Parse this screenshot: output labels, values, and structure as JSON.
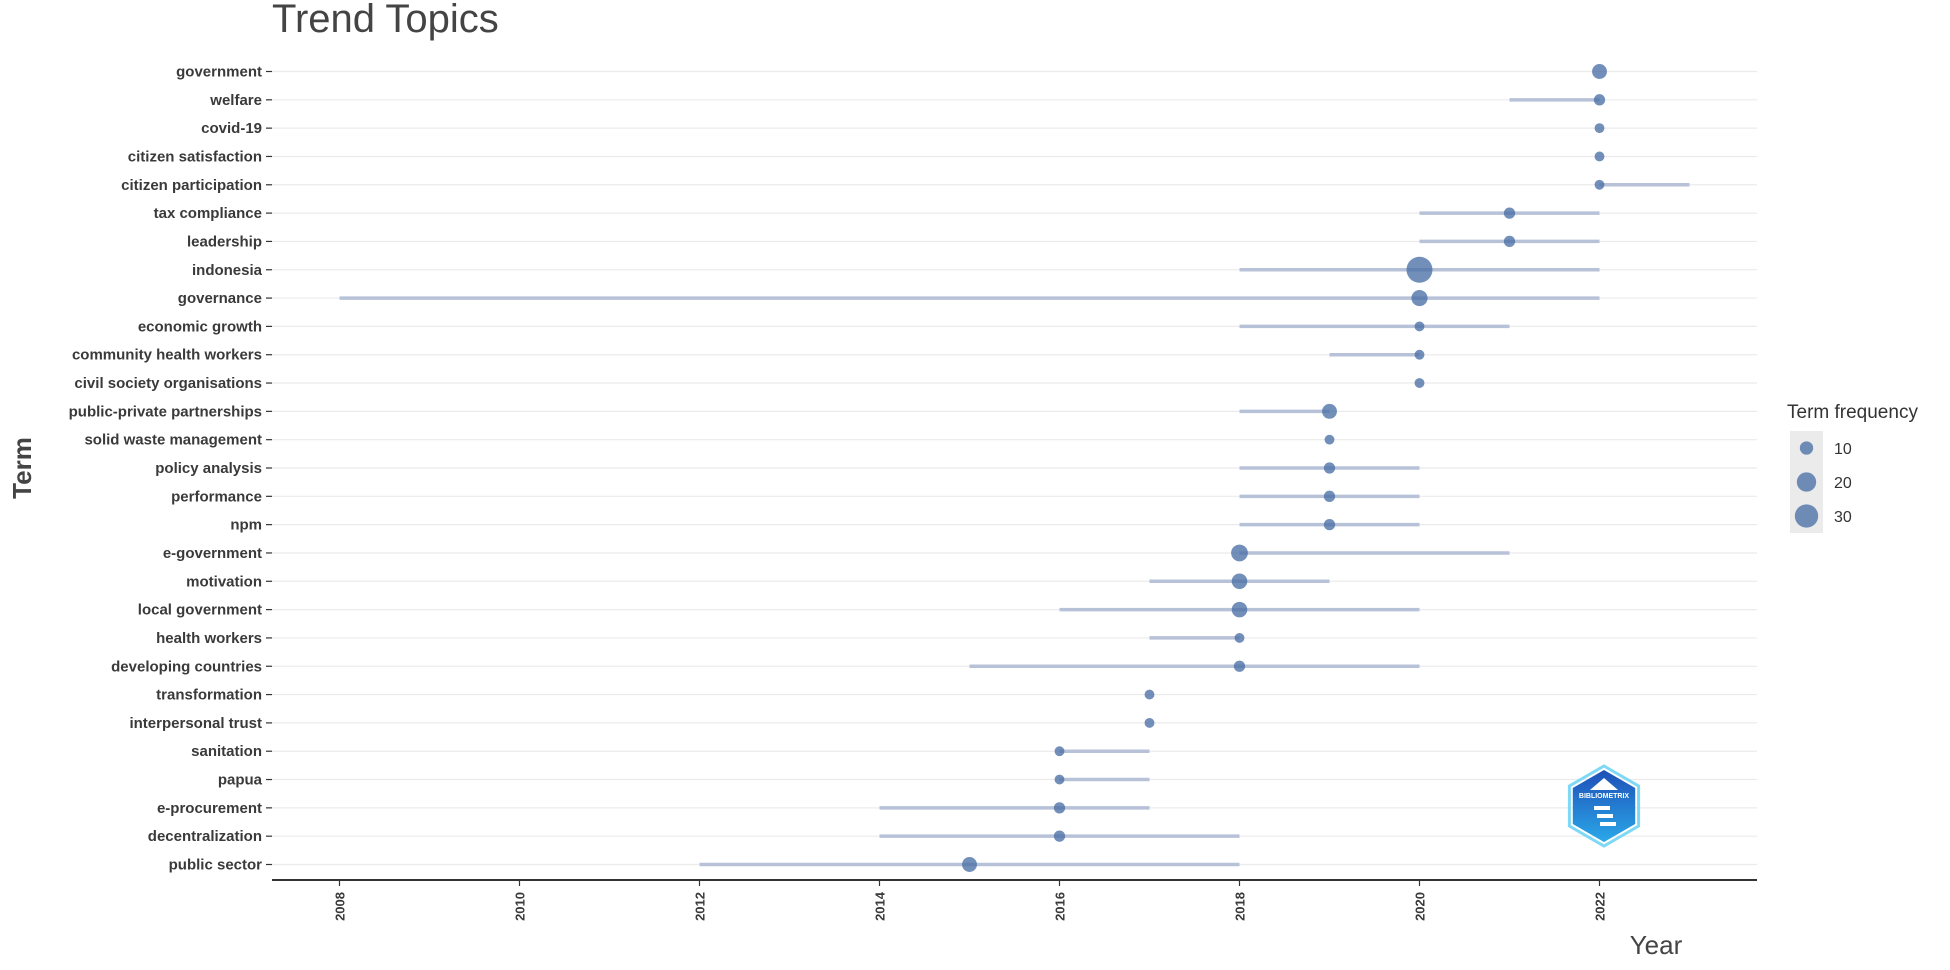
{
  "chart_data": {
    "type": "scatter",
    "title": "Trend Topics",
    "xlabel": "Year",
    "ylabel": "Term",
    "xlim": [
      2007.25,
      2023.75
    ],
    "x_ticks": [
      "2008",
      "2010",
      "2012",
      "2014",
      "2016",
      "2018",
      "2020",
      "2022"
    ],
    "grid": true,
    "legend": {
      "title": "Term frequency",
      "position": "right",
      "entries": [
        {
          "label": "10",
          "value": 10
        },
        {
          "label": "20",
          "value": 20
        },
        {
          "label": "30",
          "value": 30
        }
      ]
    },
    "terms": [
      {
        "term": "government",
        "q1": 2022,
        "median": 2022,
        "q3": 2022,
        "freq": 12
      },
      {
        "term": "welfare",
        "q1": 2021,
        "median": 2022,
        "q3": 2022,
        "freq": 8
      },
      {
        "term": "covid-19",
        "q1": 2022,
        "median": 2022,
        "q3": 2022,
        "freq": 7
      },
      {
        "term": "citizen satisfaction",
        "q1": 2022,
        "median": 2022,
        "q3": 2022,
        "freq": 7
      },
      {
        "term": "citizen participation",
        "q1": 2022,
        "median": 2022,
        "q3": 2023,
        "freq": 7
      },
      {
        "term": "tax compliance",
        "q1": 2020,
        "median": 2021,
        "q3": 2022,
        "freq": 8
      },
      {
        "term": "leadership",
        "q1": 2020,
        "median": 2021,
        "q3": 2022,
        "freq": 8
      },
      {
        "term": "indonesia",
        "q1": 2018,
        "median": 2020,
        "q3": 2022,
        "freq": 38
      },
      {
        "term": "governance",
        "q1": 2008,
        "median": 2020,
        "q3": 2022,
        "freq": 14
      },
      {
        "term": "economic growth",
        "q1": 2018,
        "median": 2020,
        "q3": 2021,
        "freq": 7
      },
      {
        "term": "community health workers",
        "q1": 2019,
        "median": 2020,
        "q3": 2020,
        "freq": 7
      },
      {
        "term": "civil society organisations",
        "q1": 2020,
        "median": 2020,
        "q3": 2020,
        "freq": 7
      },
      {
        "term": "public-private partnerships",
        "q1": 2018,
        "median": 2019,
        "q3": 2019,
        "freq": 12
      },
      {
        "term": "solid waste management",
        "q1": 2019,
        "median": 2019,
        "q3": 2019,
        "freq": 7
      },
      {
        "term": "policy analysis",
        "q1": 2018,
        "median": 2019,
        "q3": 2020,
        "freq": 8
      },
      {
        "term": "performance",
        "q1": 2018,
        "median": 2019,
        "q3": 2020,
        "freq": 8
      },
      {
        "term": "npm",
        "q1": 2018,
        "median": 2019,
        "q3": 2020,
        "freq": 8
      },
      {
        "term": "e-government",
        "q1": 2018,
        "median": 2018,
        "q3": 2021,
        "freq": 15
      },
      {
        "term": "motivation",
        "q1": 2017,
        "median": 2018,
        "q3": 2019,
        "freq": 13
      },
      {
        "term": "local government",
        "q1": 2016,
        "median": 2018,
        "q3": 2020,
        "freq": 13
      },
      {
        "term": "health workers",
        "q1": 2017,
        "median": 2018,
        "q3": 2018,
        "freq": 7
      },
      {
        "term": "developing countries",
        "q1": 2015,
        "median": 2018,
        "q3": 2020,
        "freq": 8
      },
      {
        "term": "transformation",
        "q1": 2017,
        "median": 2017,
        "q3": 2017,
        "freq": 7
      },
      {
        "term": "interpersonal trust",
        "q1": 2017,
        "median": 2017,
        "q3": 2017,
        "freq": 7
      },
      {
        "term": "sanitation",
        "q1": 2016,
        "median": 2016,
        "q3": 2017,
        "freq": 7
      },
      {
        "term": "papua",
        "q1": 2016,
        "median": 2016,
        "q3": 2017,
        "freq": 7
      },
      {
        "term": "e-procurement",
        "q1": 2014,
        "median": 2016,
        "q3": 2017,
        "freq": 8
      },
      {
        "term": "decentralization",
        "q1": 2014,
        "median": 2016,
        "q3": 2018,
        "freq": 8
      },
      {
        "term": "public sector",
        "q1": 2012,
        "median": 2015,
        "q3": 2018,
        "freq": 12
      }
    ]
  },
  "colors": {
    "point": "#4a6fa5",
    "segment": "#b7c1d8",
    "grid": "#ebebeb",
    "axis": "#333333",
    "legend_bg": "#ebebeb"
  },
  "logo": {
    "text": "BIBLIOMETRIX",
    "colors": [
      "#1e4fb8",
      "#2aa8e8",
      "#7fd8f5"
    ]
  }
}
